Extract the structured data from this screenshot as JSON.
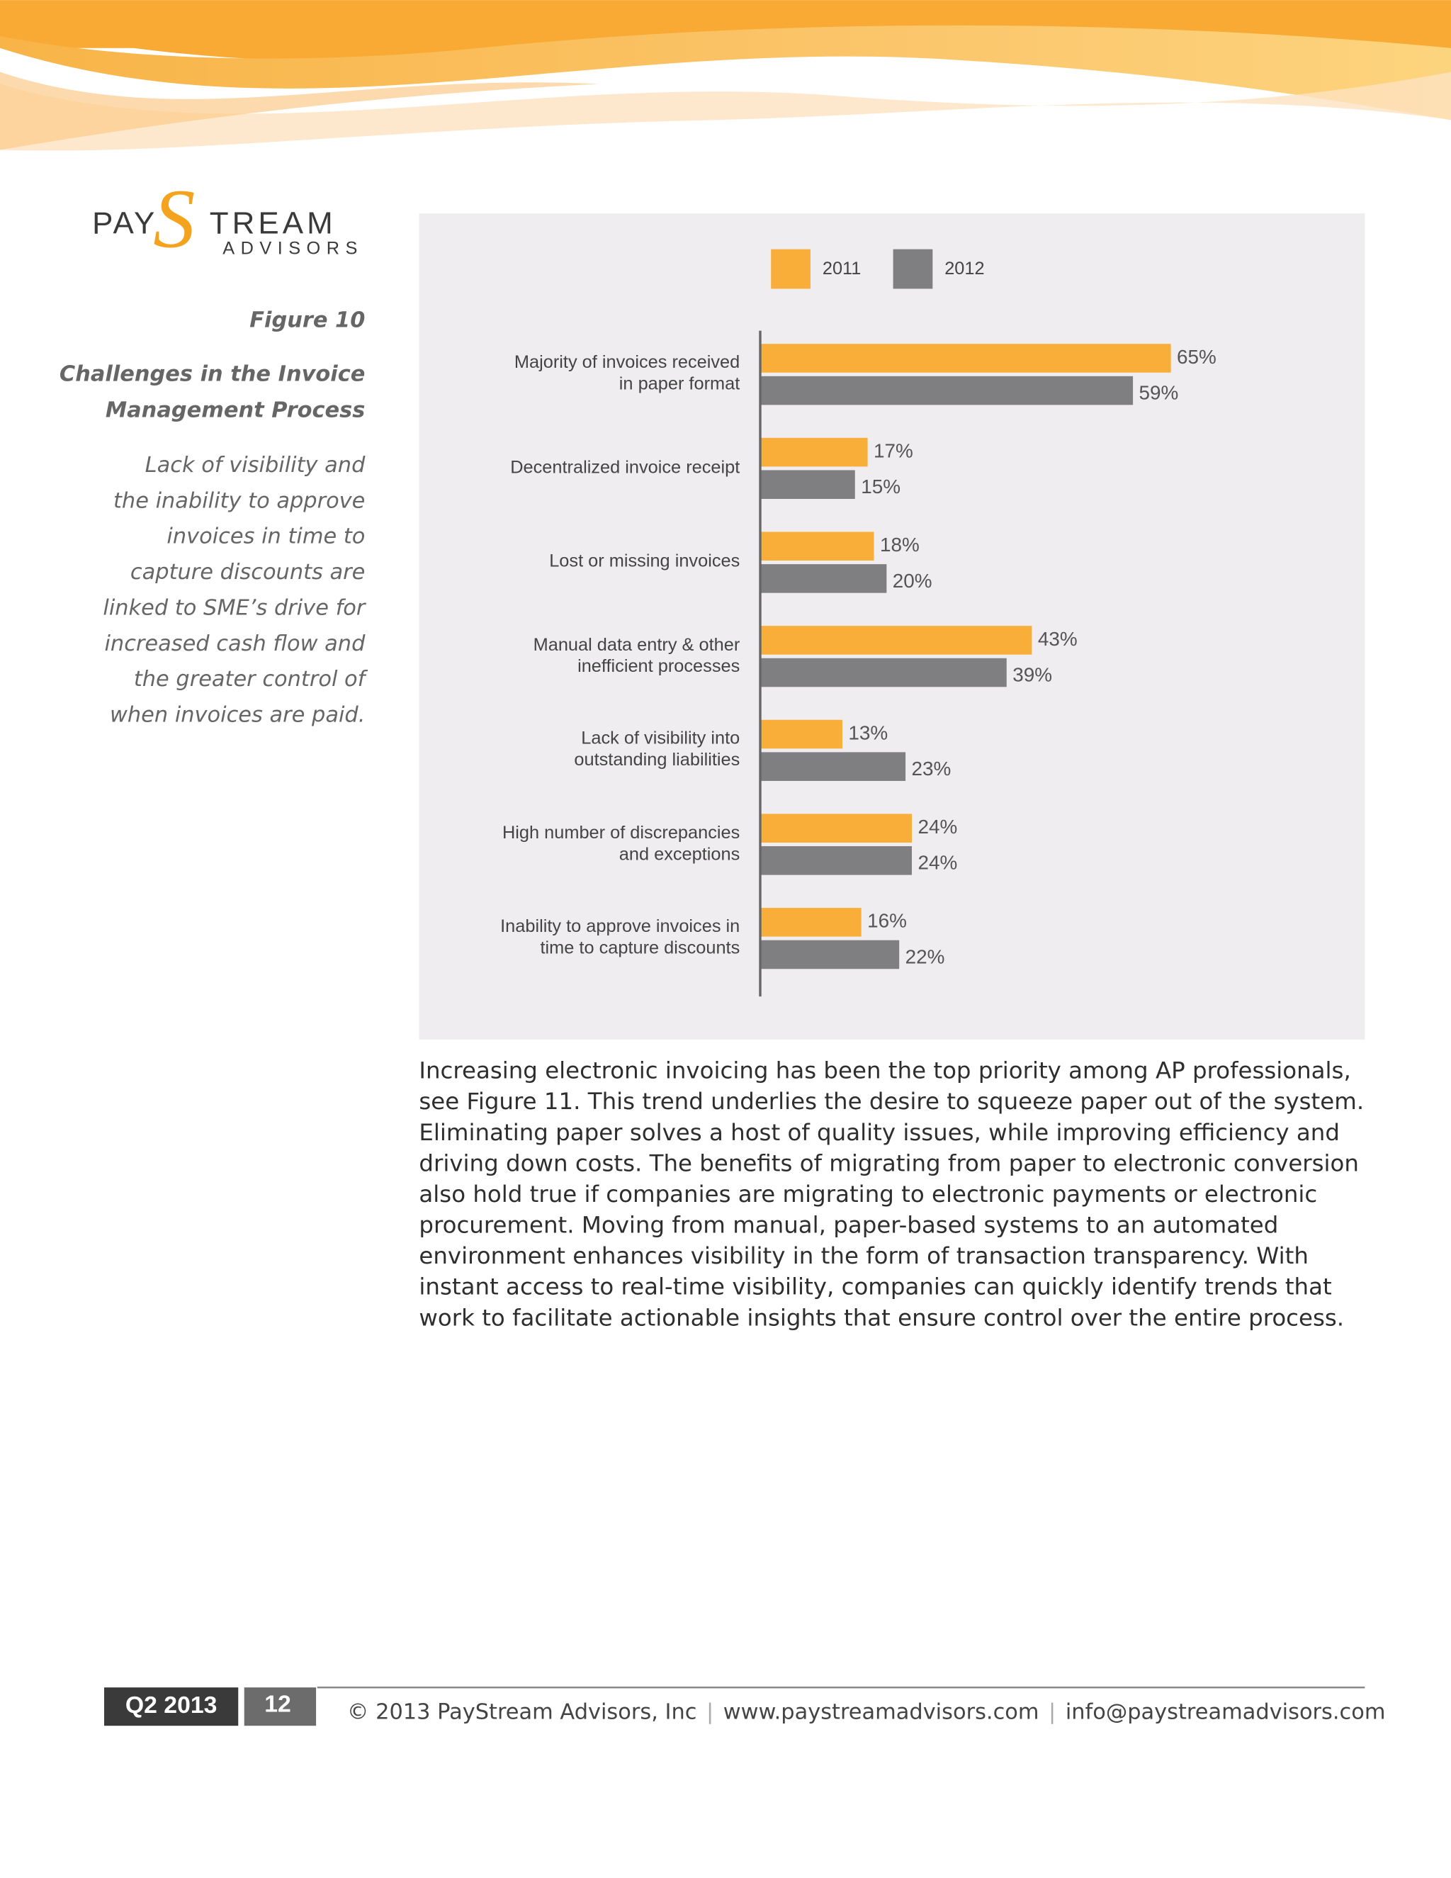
{
  "logo": {
    "left": "PAY",
    "s": "S",
    "right": "TREAM",
    "sub": "ADVISORS"
  },
  "sidebar": {
    "figure": "Figure 10",
    "title": [
      "Challenges in the Invoice",
      "Management Process"
    ],
    "description": [
      "Lack of visibility and",
      "the inability to approve",
      "invoices in time to",
      "capture discounts are",
      "linked to SME’s drive for",
      "increased cash flow and",
      "the greater control of",
      "when invoices are paid."
    ]
  },
  "chart_data": {
    "type": "hbar",
    "categories": [
      "Majority of invoices received\nin paper format",
      "Decentralized invoice receipt",
      "Lost or missing invoices",
      "Manual data entry & other\ninefficient processes",
      "Lack of visibility into\noutstanding liabilities",
      "High number of discrepancies\nand exceptions",
      "Inability to approve invoices in\ntime to capture discounts"
    ],
    "series": [
      {
        "name": "2011",
        "color": "#f9ae3a",
        "values": [
          65,
          17,
          18,
          43,
          13,
          24,
          16
        ],
        "value_labels": [
          "65%",
          "17%",
          "18%",
          "43%",
          "13%",
          "24%",
          "16%"
        ]
      },
      {
        "name": "2012",
        "color": "#7f7e80",
        "values": [
          59,
          15,
          20,
          39,
          23,
          24,
          22
        ],
        "value_labels": [
          "59%",
          "15%",
          "20%",
          "39%",
          "23%",
          "24%",
          "22%"
        ]
      }
    ],
    "xlim": [
      0,
      100
    ],
    "legend": "top"
  },
  "body": {
    "lines": [
      "Increasing electronic invoicing has been the top priority among AP professionals,",
      "see Figure 11.  This trend underlies the desire to squeeze paper out of the system.",
      "Eliminating paper solves a host of quality issues, while improving efficiency and",
      "driving down costs.  The benefits of migrating from paper to electronic conversion",
      "also hold true if companies are migrating to electronic payments or electronic",
      "procurement.  Moving from manual, paper-based systems to an automated",
      "environment enhances visibility in the form of transaction transparency.  With",
      "instant access to real-time visibility, companies can quickly identify trends that",
      "work to facilitate actionable insights that ensure control over the entire process."
    ]
  },
  "footer": {
    "quarter": "Q2 2013",
    "page": "12",
    "copyright": "© 2013 PayStream Advisors, Inc",
    "separator": "|",
    "website": "www.paystreamadvisors.com",
    "email": "info@paystreamadvisors.com"
  }
}
